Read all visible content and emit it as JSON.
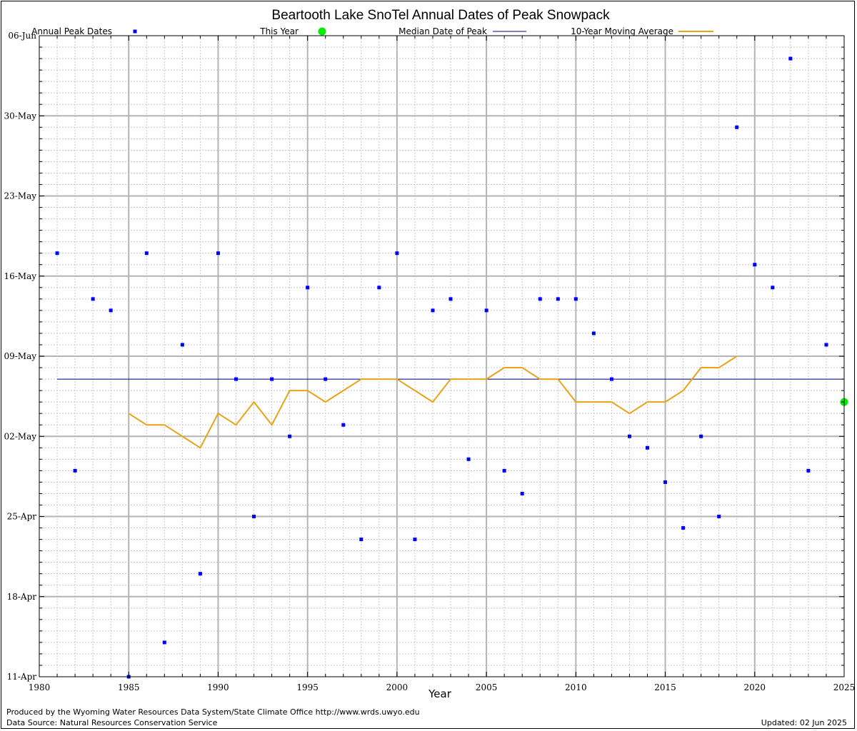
{
  "chart_data": {
    "type": "scatter",
    "title": "Beartooth Lake SnoTel Annual Dates of Peak Snowpack",
    "xlabel": "Year",
    "ylabel": "",
    "xlim": [
      1980,
      2025
    ],
    "x_ticks": [
      "1980",
      "1985",
      "1990",
      "1995",
      "2000",
      "2005",
      "2010",
      "2015",
      "2020",
      "2025"
    ],
    "y_axis": "date",
    "ylim": [
      "11-Apr",
      "06-Jun"
    ],
    "y_ticks": [
      "11-Apr",
      "18-Apr",
      "25-Apr",
      "02-May",
      "09-May",
      "16-May",
      "23-May",
      "30-May",
      "06-Jun"
    ],
    "grid": true,
    "legend": {
      "position": "top",
      "entries": [
        "Annual Peak Dates",
        "This Year",
        "Median Date of Peak",
        "10-Year Moving Average"
      ]
    },
    "series": [
      {
        "name": "Annual Peak Dates",
        "color": "#0000ff",
        "style": "points",
        "x": [
          1981,
          1982,
          1983,
          1984,
          1985,
          1986,
          1987,
          1988,
          1989,
          1990,
          1991,
          1992,
          1993,
          1994,
          1995,
          1996,
          1997,
          1998,
          1999,
          2000,
          2001,
          2002,
          2003,
          2004,
          2005,
          2006,
          2007,
          2008,
          2009,
          2010,
          2011,
          2012,
          2013,
          2014,
          2015,
          2016,
          2017,
          2018,
          2019,
          2020,
          2021,
          2022,
          2023,
          2024
        ],
        "y": [
          "18-May",
          "29-Apr",
          "14-May",
          "13-May",
          "11-Apr",
          "18-May",
          "14-Apr",
          "10-May",
          "20-Apr",
          "18-May",
          "07-May",
          "25-Apr",
          "07-May",
          "02-May",
          "15-May",
          "07-May",
          "03-May",
          "23-Apr",
          "15-May",
          "18-May",
          "23-Apr",
          "13-May",
          "14-May",
          "30-Apr",
          "13-May",
          "29-Apr",
          "27-Apr",
          "14-May",
          "14-May",
          "14-May",
          "11-May",
          "07-May",
          "02-May",
          "01-May",
          "28-Apr",
          "24-Apr",
          "02-May",
          "25-Apr",
          "29-May",
          "17-May",
          "15-May",
          "04-Jun",
          "29-Apr",
          "10-May"
        ]
      },
      {
        "name": "This Year",
        "color": "#00ee00",
        "style": "points",
        "x": [
          2025
        ],
        "y": [
          "05-May"
        ]
      },
      {
        "name": "Median Date of Peak",
        "color": "#000080",
        "style": "line",
        "x": [
          1981,
          2025
        ],
        "y": [
          "07-May",
          "07-May"
        ]
      },
      {
        "name": "10-Year Moving Average",
        "color": "#e8a317",
        "style": "line",
        "x": [
          1985,
          1986,
          1987,
          1988,
          1989,
          1990,
          1991,
          1992,
          1993,
          1994,
          1995,
          1996,
          1997,
          1998,
          1999,
          2000,
          2001,
          2002,
          2003,
          2004,
          2005,
          2006,
          2007,
          2008,
          2009,
          2010,
          2011,
          2012,
          2013,
          2014,
          2015,
          2016,
          2017,
          2018,
          2019
        ],
        "y": [
          "04-May",
          "03-May",
          "03-May",
          "02-May",
          "01-May",
          "04-May",
          "03-May",
          "05-May",
          "03-May",
          "06-May",
          "06-May",
          "05-May",
          "06-May",
          "07-May",
          "07-May",
          "07-May",
          "06-May",
          "05-May",
          "07-May",
          "07-May",
          "07-May",
          "08-May",
          "08-May",
          "07-May",
          "07-May",
          "05-May",
          "05-May",
          "05-May",
          "04-May",
          "05-May",
          "05-May",
          "06-May",
          "08-May",
          "08-May",
          "09-May"
        ]
      }
    ]
  },
  "footer": {
    "produced_by": "Produced by the Wyoming Water Resources Data System/State Climate Office http://www.wrds.uwyo.edu",
    "data_source": "Data Source: Natural Resources Conservation Service",
    "updated": "Updated: 02 Jun 2025"
  }
}
